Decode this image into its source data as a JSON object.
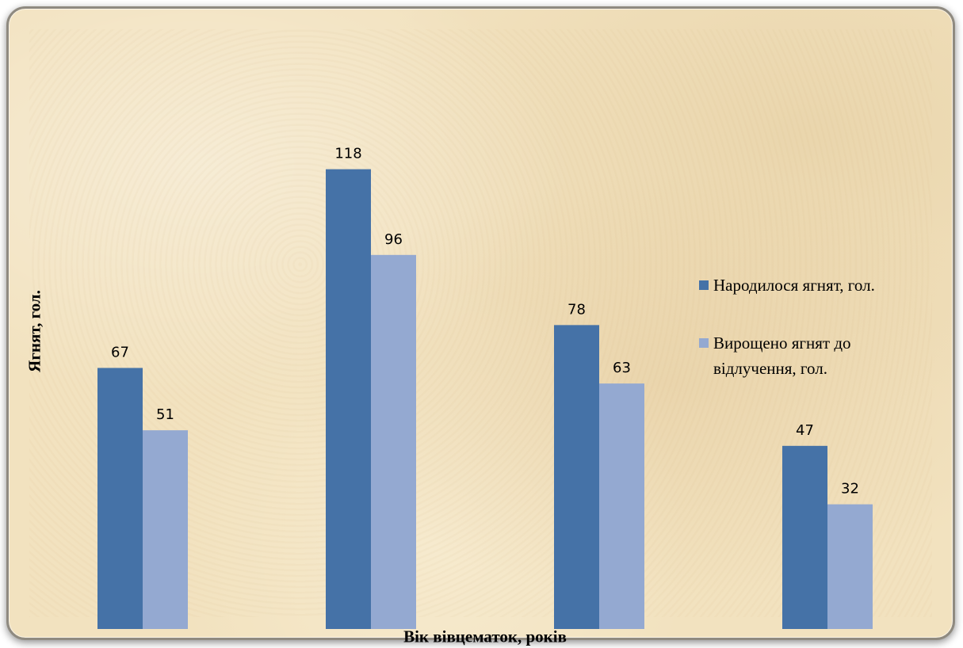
{
  "chart_data": {
    "type": "bar",
    "title": "",
    "xlabel": "Вік вівцематок, років",
    "ylabel": "Ягнят, гол.",
    "categories": [
      "",
      "",
      "",
      ""
    ],
    "series": [
      {
        "name": "Народилося ягнят, гол.",
        "values": [
          67,
          118,
          78,
          47
        ],
        "color": "#4572a7"
      },
      {
        "name": "Вирощено ягнят до відлучення, гол.",
        "values": [
          51,
          96,
          63,
          32
        ],
        "color": "#94a9d1"
      }
    ],
    "ylim": [
      0,
      135
    ],
    "grid": false,
    "data_labels": true,
    "legend_position": "right"
  }
}
